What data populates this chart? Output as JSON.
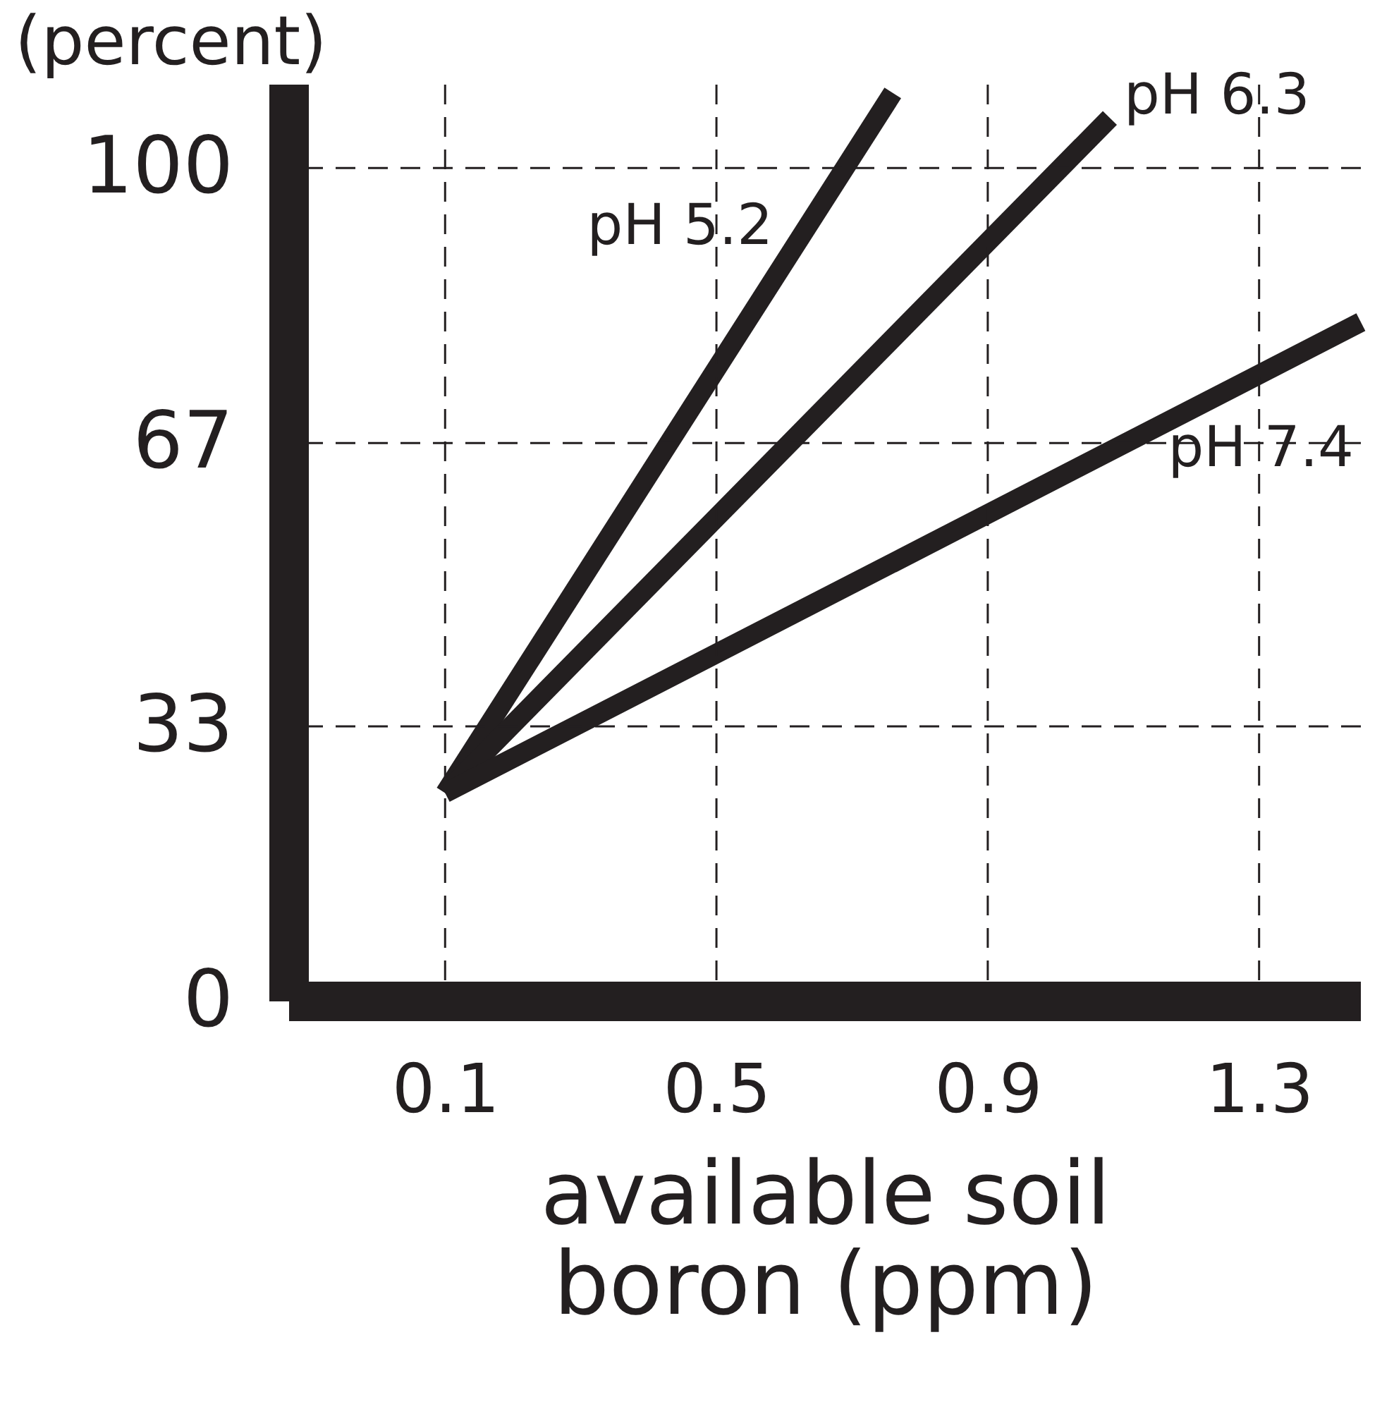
{
  "chart_data": {
    "type": "line",
    "xlabel": "available soil boron (ppm)",
    "ylabel": "(percent)",
    "series": [
      {
        "name": "pH 5.2",
        "color": "#231f20",
        "x": [
          0.1,
          0.76
        ],
        "values": [
          25,
          109
        ]
      },
      {
        "name": "pH 6.3",
        "color": "#231f20",
        "x": [
          0.1,
          1.08
        ],
        "values": [
          25,
          106
        ]
      },
      {
        "name": "pH 7.4",
        "color": "#231f20",
        "x": [
          0.1,
          1.45
        ],
        "values": [
          25,
          81.5
        ]
      }
    ],
    "xlim": [
      -0.13,
      1.45
    ],
    "ylim": [
      0,
      110
    ],
    "xticks": [
      0.1,
      0.5,
      0.9,
      1.3
    ],
    "yticks": [
      0,
      33,
      67,
      100
    ],
    "grid": true,
    "marker": "none",
    "line_style": "solid",
    "legend": false
  }
}
